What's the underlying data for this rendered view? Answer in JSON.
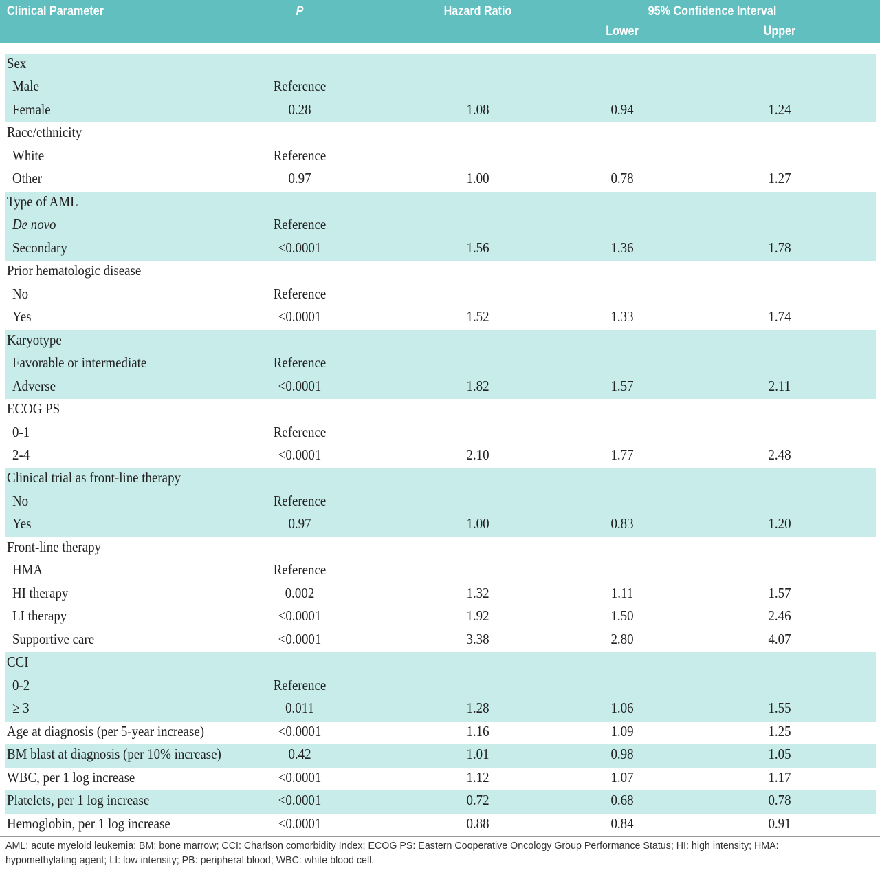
{
  "table": {
    "header": {
      "parameter": "Clinical Parameter",
      "p": "P",
      "hr": "Hazard Ratio",
      "ci": "95% Confidence Interval",
      "lower": "Lower",
      "upper": "Upper"
    },
    "groups": [
      {
        "title": "Sex",
        "rows": [
          [
            "Male",
            "Reference"
          ],
          [
            "Female",
            "0.28",
            "1.08",
            "0.94",
            "1.24"
          ]
        ]
      },
      {
        "title": "Race/ethnicity",
        "rows": [
          [
            "White",
            "Reference"
          ],
          [
            "Other",
            "0.97",
            "1.00",
            "0.78",
            "1.27"
          ]
        ]
      },
      {
        "title": "Type of AML",
        "rows": [
          [
            "De novo",
            "Reference"
          ],
          [
            "Secondary",
            "<0.0001",
            "1.56",
            "1.36",
            "1.78"
          ]
        ]
      },
      {
        "title": "Prior hematologic disease",
        "rows": [
          [
            "No",
            "Reference"
          ],
          [
            "Yes",
            "<0.0001",
            "1.52",
            "1.33",
            "1.74"
          ]
        ]
      },
      {
        "title": "Karyotype",
        "rows": [
          [
            "Favorable or intermediate",
            "Reference"
          ],
          [
            "Adverse",
            "<0.0001",
            "1.82",
            "1.57",
            "2.11"
          ]
        ]
      },
      {
        "title": "ECOG PS",
        "rows": [
          [
            "0-1",
            "Reference"
          ],
          [
            "2-4",
            "<0.0001",
            "2.10",
            "1.77",
            "2.48"
          ]
        ]
      },
      {
        "title": "Clinical trial as front-line therapy",
        "rows": [
          [
            "No",
            "Reference"
          ],
          [
            "Yes",
            "0.97",
            "1.00",
            "0.83",
            "1.20"
          ]
        ]
      },
      {
        "title": "Front-line therapy",
        "rows": [
          [
            "HMA",
            "Reference"
          ],
          [
            "HI therapy",
            "0.002",
            "1.32",
            "1.11",
            "1.57"
          ],
          [
            "LI therapy",
            "<0.0001",
            "1.92",
            "1.50",
            "2.46"
          ],
          [
            "Supportive care",
            "<0.0001",
            "3.38",
            "2.80",
            "4.07"
          ]
        ]
      },
      {
        "title": "CCI",
        "rows": [
          [
            "0-2",
            "Reference"
          ],
          [
            "≥ 3",
            "0.011",
            "1.28",
            "1.06",
            "1.55"
          ]
        ]
      },
      {
        "rows": [
          [
            "Age at diagnosis (per 5-year increase)",
            "<0.0001",
            "1.16",
            "1.09",
            "1.25"
          ]
        ]
      },
      {
        "rows": [
          [
            "BM blast at diagnosis (per 10% increase)",
            "0.42",
            "1.01",
            "0.98",
            "1.05"
          ]
        ]
      },
      {
        "rows": [
          [
            "WBC, per 1 log increase",
            "<0.0001",
            "1.12",
            "1.07",
            "1.17"
          ]
        ]
      },
      {
        "rows": [
          [
            "Platelets, per 1 log increase",
            "<0.0001",
            "0.72",
            "0.68",
            "0.78"
          ]
        ]
      },
      {
        "rows": [
          [
            "Hemoglobin, per 1 log increase",
            "<0.0001",
            "0.88",
            "0.84",
            "0.91"
          ]
        ]
      }
    ],
    "footnote": "AML: acute myeloid leukemia; BM: bone marrow; CCI: Charlson comorbidity Index; ECOG PS: Eastern Cooperative Oncology Group Performance Status; HI: high intensity; HMA: hypomethylating agent; LI: low intensity; PB: peripheral blood; WBC: white blood cell."
  }
}
